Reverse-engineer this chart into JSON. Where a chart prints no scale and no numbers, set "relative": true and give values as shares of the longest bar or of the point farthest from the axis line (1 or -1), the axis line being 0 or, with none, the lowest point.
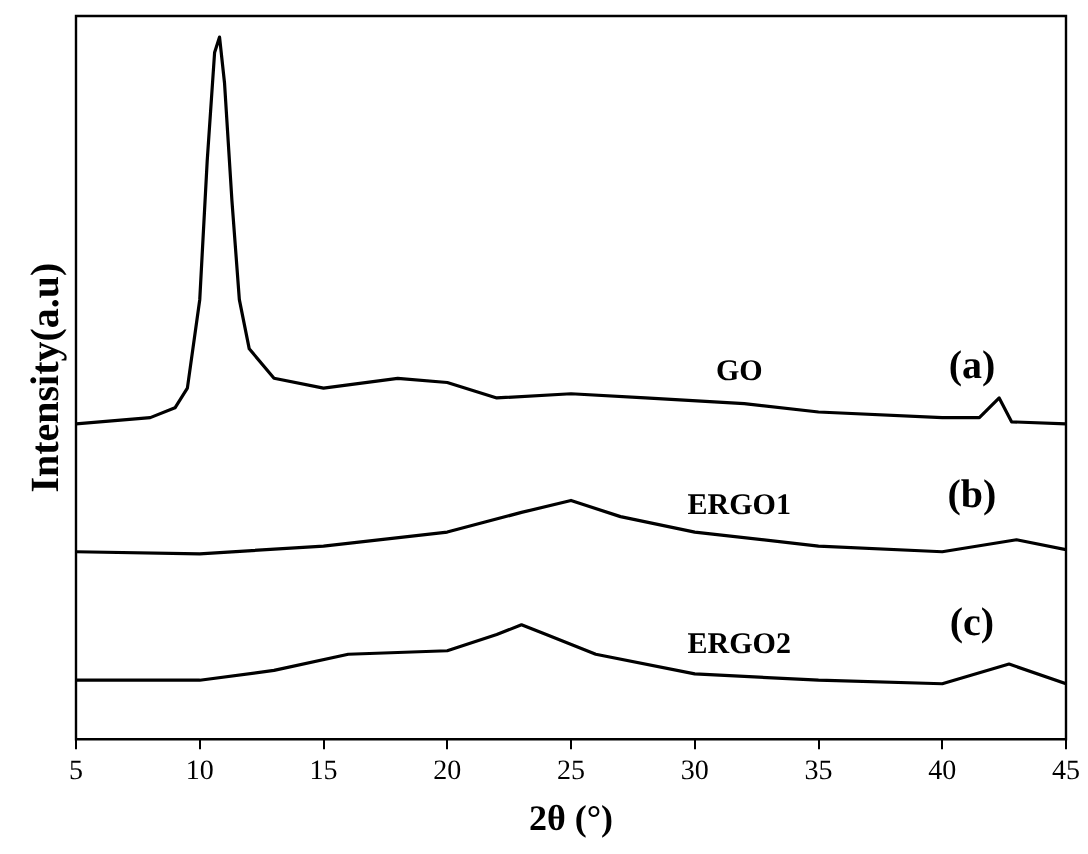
{
  "chart_data": {
    "type": "line",
    "relative": true,
    "xlabel": "2θ (°)",
    "ylabel": "Intensity(a.u)",
    "xlim": [
      5,
      45
    ],
    "xticks": [
      5,
      10,
      15,
      20,
      25,
      30,
      35,
      40,
      45
    ],
    "grid": false,
    "legend": false,
    "marker": "none",
    "line_style": "solid",
    "series": [
      {
        "name": "GO",
        "color": "#000000",
        "x": [
          5,
          8,
          9,
          9.5,
          10,
          10.3,
          10.6,
          10.8,
          11,
          11.3,
          11.6,
          12,
          13,
          15,
          18,
          20,
          22,
          25,
          28,
          32,
          35,
          40,
          41.5,
          42.3,
          42.8,
          45
        ],
        "values": [
          0.449,
          0.458,
          0.472,
          0.5,
          0.626,
          0.823,
          0.978,
          1.0,
          0.935,
          0.767,
          0.626,
          0.556,
          0.514,
          0.5,
          0.514,
          0.508,
          0.486,
          0.492,
          0.486,
          0.478,
          0.466,
          0.458,
          0.458,
          0.486,
          0.452,
          0.449
        ]
      },
      {
        "name": "ERGO1",
        "color": "#000000",
        "x": [
          5,
          10,
          15,
          20,
          23,
          25,
          27,
          30,
          35,
          40,
          43,
          45
        ],
        "values": [
          0.267,
          0.264,
          0.275,
          0.295,
          0.323,
          0.34,
          0.317,
          0.295,
          0.275,
          0.267,
          0.284,
          0.27
        ]
      },
      {
        "name": "ERGO2",
        "color": "#000000",
        "x": [
          5,
          10,
          13,
          16,
          20,
          22,
          23,
          24,
          26,
          30,
          35,
          40,
          42.7,
          45
        ],
        "values": [
          0.084,
          0.084,
          0.098,
          0.121,
          0.126,
          0.149,
          0.163,
          0.149,
          0.121,
          0.093,
          0.084,
          0.079,
          0.107,
          0.079
        ]
      }
    ],
    "annotations": [
      "(a)",
      "(b)",
      "(c)"
    ]
  }
}
